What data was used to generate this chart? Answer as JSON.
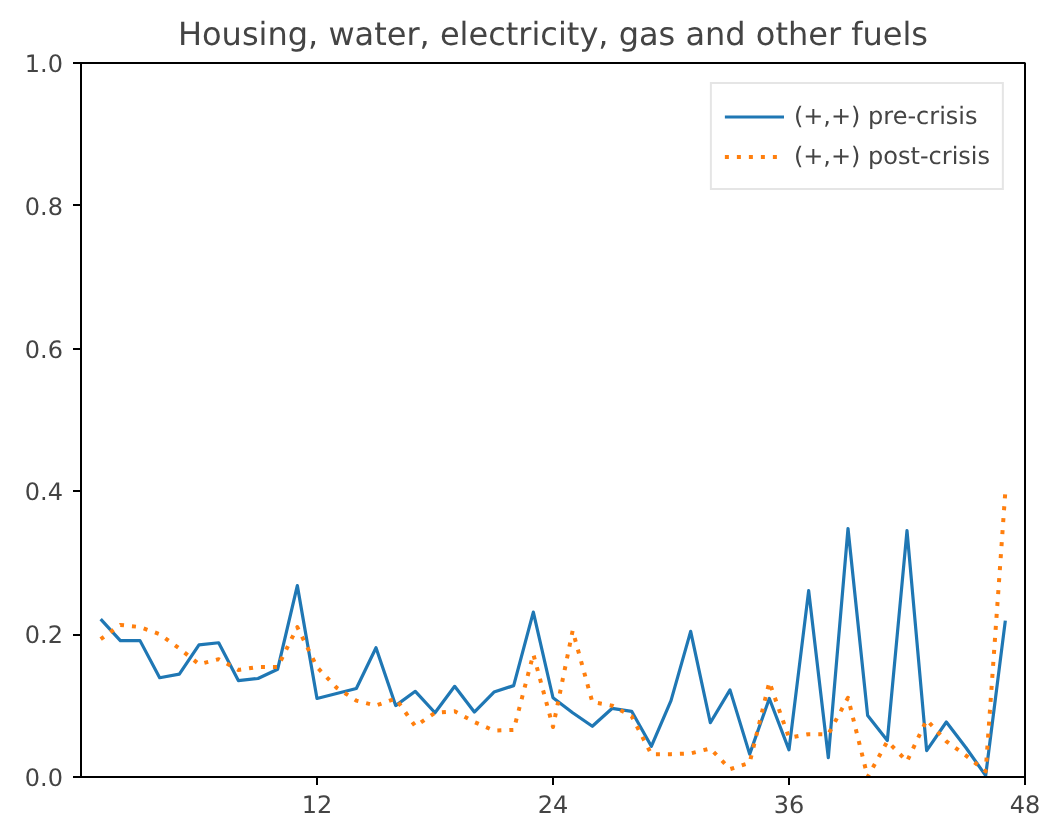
{
  "chart_data": {
    "type": "line",
    "title": "Housing, water, electricity, gas and other fuels",
    "x": [
      1,
      2,
      3,
      4,
      5,
      6,
      7,
      8,
      9,
      10,
      11,
      12,
      13,
      14,
      15,
      16,
      17,
      18,
      19,
      20,
      21,
      22,
      23,
      24,
      25,
      26,
      27,
      28,
      29,
      30,
      31,
      32,
      33,
      34,
      35,
      36,
      37,
      38,
      39,
      40,
      41,
      42,
      43,
      44,
      45,
      46,
      47
    ],
    "series": [
      {
        "name": "(+,+) pre-crisis",
        "color": "#1f77b4",
        "line_style": "solid",
        "values": [
          0.221,
          0.191,
          0.191,
          0.139,
          0.144,
          0.185,
          0.188,
          0.135,
          0.138,
          0.151,
          0.268,
          0.11,
          0.117,
          0.124,
          0.181,
          0.1,
          0.12,
          0.09,
          0.127,
          0.091,
          0.119,
          0.128,
          0.231,
          0.111,
          0.09,
          0.071,
          0.096,
          0.092,
          0.043,
          0.107,
          0.204,
          0.076,
          0.122,
          0.032,
          0.11,
          0.038,
          0.261,
          0.027,
          0.348,
          0.086,
          0.051,
          0.345,
          0.037,
          0.077,
          0.041,
          0.002,
          0.219
        ]
      },
      {
        "name": "(+,+) post-crisis",
        "color": "#ff7f0e",
        "line_style": "dotted",
        "values": [
          0.193,
          0.213,
          0.21,
          0.2,
          0.18,
          0.158,
          0.165,
          0.15,
          0.154,
          0.154,
          0.21,
          0.154,
          0.125,
          0.107,
          0.1,
          0.11,
          0.071,
          0.09,
          0.092,
          0.077,
          0.065,
          0.066,
          0.172,
          0.07,
          0.205,
          0.105,
          0.1,
          0.085,
          0.032,
          0.032,
          0.033,
          0.04,
          0.011,
          0.02,
          0.133,
          0.055,
          0.06,
          0.06,
          0.111,
          0.0,
          0.05,
          0.022,
          0.08,
          0.05,
          0.03,
          0.008,
          0.4
        ]
      }
    ],
    "xlim": [
      0,
      48
    ],
    "ylim": [
      0,
      1.0
    ],
    "xticks": [
      12,
      24,
      36,
      48
    ],
    "yticks": [
      {
        "value": 0,
        "label": "0.0"
      },
      {
        "value": 0.2,
        "label": "0.2"
      },
      {
        "value": 0.4,
        "label": "0.4"
      },
      {
        "value": 0.6,
        "label": "0.6"
      },
      {
        "value": 0.8,
        "label": "0.8"
      },
      {
        "value": 1.0,
        "label": "1.0"
      }
    ],
    "grid": false,
    "legend": "top right"
  }
}
